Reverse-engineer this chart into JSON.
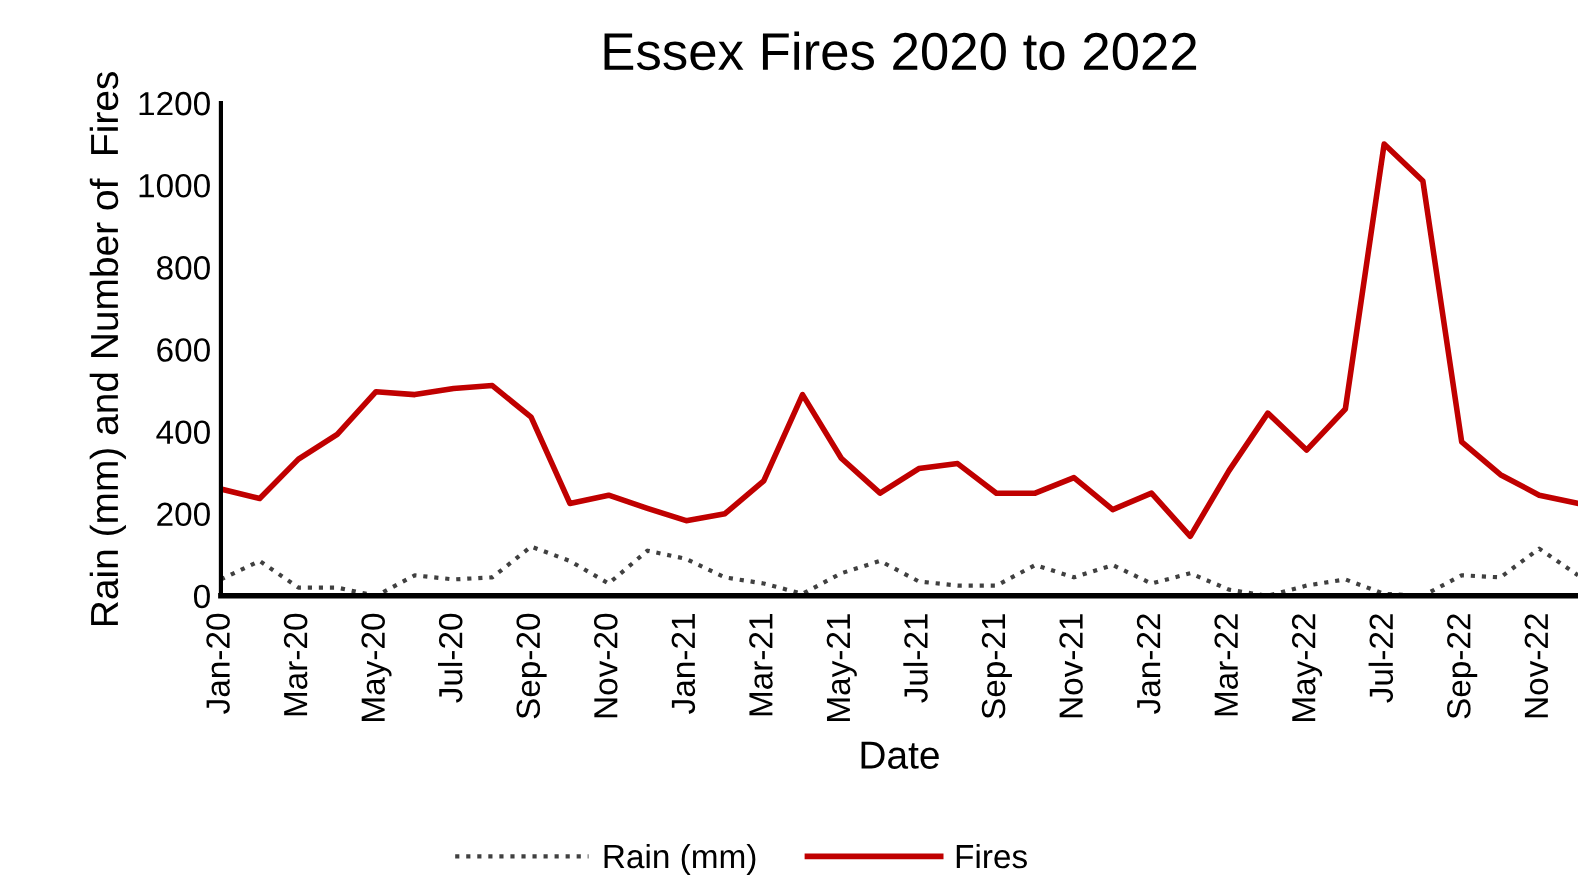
{
  "chart_data": {
    "type": "line",
    "title": "Essex Fires 2020 to 2022",
    "xlabel": "Date",
    "ylabel": "Rain (mm) and Number of  Fires",
    "categories": [
      "Jan-20",
      null,
      "Mar-20",
      null,
      "May-20",
      null,
      "Jul-20",
      null,
      "Sep-20",
      null,
      "Nov-20",
      null,
      "Jan-21",
      null,
      "Mar-21",
      null,
      "May-21",
      null,
      "Jul-21",
      null,
      "Sep-21",
      null,
      "Nov-21",
      null,
      "Jan-22",
      null,
      "Mar-22",
      null,
      "May-22",
      null,
      "Jul-22",
      null,
      "Sep-22",
      null,
      "Nov-22",
      null
    ],
    "series": [
      {
        "name": "Rain (mm)",
        "color": "#404040",
        "line_style": "dotted",
        "values": [
          40,
          85,
          20,
          20,
          0,
          50,
          40,
          45,
          120,
          85,
          30,
          110,
          90,
          45,
          30,
          5,
          55,
          85,
          35,
          25,
          25,
          75,
          45,
          75,
          30,
          55,
          15,
          0,
          25,
          40,
          5,
          0,
          50,
          45,
          115,
          50
        ]
      },
      {
        "name": "Fires",
        "color": "#c00000",
        "line_style": "solid",
        "values": [
          260,
          237,
          333,
          393,
          497,
          490,
          505,
          512,
          435,
          225,
          245,
          213,
          183,
          200,
          280,
          490,
          335,
          250,
          310,
          322,
          250,
          250,
          288,
          210,
          250,
          145,
          305,
          445,
          355,
          455,
          1100,
          1010,
          375,
          295,
          245,
          225
        ]
      }
    ],
    "ylim": [
      0,
      1200
    ],
    "yticks": [
      0,
      200,
      400,
      600,
      800,
      1000,
      1200
    ],
    "grid": false,
    "legend": "bottom"
  }
}
